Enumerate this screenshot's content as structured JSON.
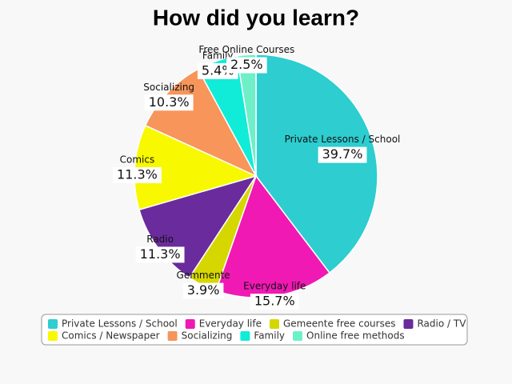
{
  "chart_data": {
    "type": "pie",
    "title": "How did you learn?",
    "categories": [
      "Private Lessons / School",
      "Everyday life",
      "Gemeente free courses",
      "Radio / TV",
      "Comics / Newspaper",
      "Socializing",
      "Family",
      "Online free methods"
    ],
    "labels": [
      "Private Lessons / School",
      "Everyday life",
      "Gemmente",
      "Radio",
      "Comics",
      "Socializing",
      "Family",
      "Free Online Courses"
    ],
    "values": [
      39.7,
      15.7,
      3.9,
      11.3,
      11.3,
      10.3,
      5.4,
      2.5
    ],
    "value_labels": [
      "39.7%",
      "15.7%",
      "3.9%",
      "11.3%",
      "11.3%",
      "10.3%",
      "5.4%",
      "2.5%"
    ],
    "colors": [
      "#2dcdd0",
      "#f019b4",
      "#d6d600",
      "#6a2b9c",
      "#f8f800",
      "#f7955a",
      "#10ecd7",
      "#6eefc7"
    ],
    "legend": "bottom"
  }
}
